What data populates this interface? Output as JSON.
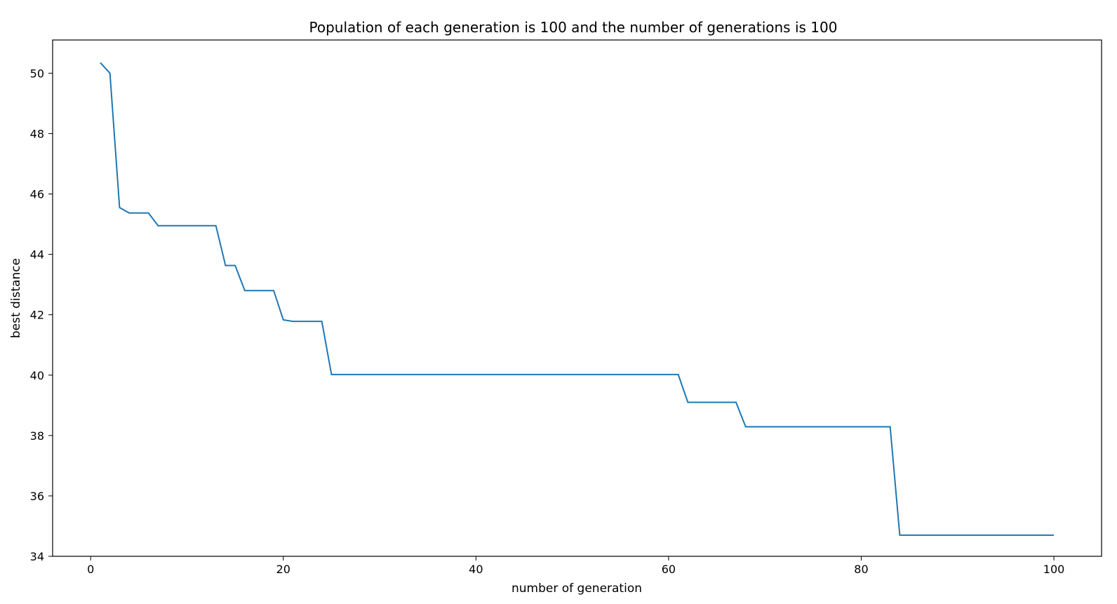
{
  "chart_data": {
    "type": "line",
    "title": "Population of each generation is 100 and the number of generations is 100",
    "xlabel": "number of generation",
    "ylabel": "best distance",
    "xlim": [
      -3.95,
      104.95
    ],
    "ylim": [
      34.0,
      51.1
    ],
    "xticks": [
      0,
      20,
      40,
      60,
      80,
      100
    ],
    "yticks": [
      34,
      36,
      38,
      40,
      42,
      44,
      46,
      48,
      50
    ],
    "grid": false,
    "legend": "none",
    "series": [
      {
        "color": "#1f77b4",
        "x": [
          1,
          2,
          3,
          4,
          5,
          6,
          7,
          8,
          9,
          10,
          11,
          12,
          13,
          14,
          15,
          16,
          17,
          18,
          19,
          20,
          21,
          22,
          23,
          24,
          25,
          26,
          27,
          28,
          29,
          30,
          31,
          32,
          33,
          34,
          35,
          36,
          37,
          38,
          39,
          40,
          41,
          42,
          43,
          44,
          45,
          46,
          47,
          48,
          49,
          50,
          51,
          52,
          53,
          54,
          55,
          56,
          57,
          58,
          59,
          60,
          61,
          62,
          63,
          64,
          65,
          66,
          67,
          68,
          69,
          70,
          71,
          72,
          73,
          74,
          75,
          76,
          77,
          78,
          79,
          80,
          81,
          82,
          83,
          84,
          85,
          86,
          87,
          88,
          89,
          90,
          91,
          92,
          93,
          94,
          95,
          96,
          97,
          98,
          99,
          100
        ],
        "y": [
          50.35,
          50.0,
          45.55,
          45.37,
          45.37,
          45.37,
          44.95,
          44.95,
          44.95,
          44.95,
          44.95,
          44.95,
          44.95,
          43.63,
          43.63,
          42.8,
          42.8,
          42.8,
          42.8,
          41.83,
          41.78,
          41.78,
          41.78,
          41.78,
          40.02,
          40.02,
          40.02,
          40.02,
          40.02,
          40.02,
          40.02,
          40.02,
          40.02,
          40.02,
          40.02,
          40.02,
          40.02,
          40.02,
          40.02,
          40.02,
          40.02,
          40.02,
          40.02,
          40.02,
          40.02,
          40.02,
          40.02,
          40.02,
          40.02,
          40.02,
          40.02,
          40.02,
          40.02,
          40.02,
          40.02,
          40.02,
          40.02,
          40.02,
          40.02,
          40.02,
          40.02,
          39.1,
          39.1,
          39.1,
          39.1,
          39.1,
          39.1,
          38.29,
          38.29,
          38.29,
          38.29,
          38.29,
          38.29,
          38.29,
          38.29,
          38.29,
          38.29,
          38.29,
          38.29,
          38.29,
          38.29,
          38.29,
          38.29,
          34.7,
          34.7,
          34.7,
          34.7,
          34.7,
          34.7,
          34.7,
          34.7,
          34.7,
          34.7,
          34.7,
          34.7,
          34.7,
          34.7,
          34.7,
          34.7,
          34.7
        ]
      }
    ]
  }
}
